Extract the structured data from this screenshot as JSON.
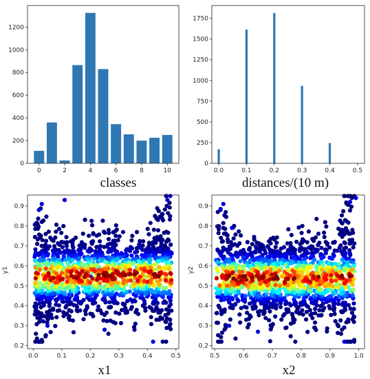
{
  "chart_data": [
    {
      "type": "bar",
      "id": "classes",
      "x": [
        0,
        1,
        2,
        3,
        4,
        5,
        6,
        7,
        8,
        9,
        10
      ],
      "values": [
        110,
        360,
        25,
        865,
        1325,
        830,
        345,
        255,
        200,
        225,
        250
      ],
      "xlabel": "classes",
      "xticks": [
        0,
        2,
        4,
        6,
        8,
        10
      ],
      "yticks": [
        0,
        200,
        400,
        600,
        800,
        1000,
        1200
      ],
      "xlim": [
        -0.9,
        10.9
      ],
      "ylim": [
        0,
        1390
      ],
      "color": "#2f78b4"
    },
    {
      "type": "bar",
      "id": "distances",
      "x": [
        0.0,
        0.1,
        0.2,
        0.3,
        0.4
      ],
      "values": [
        170,
        1615,
        1815,
        935,
        245
      ],
      "xlabel": "distances/(10 m)",
      "xticks": [
        "0.0",
        "0.1",
        "0.2",
        "0.3",
        "0.4",
        "0.5"
      ],
      "yticks": [
        0,
        250,
        500,
        750,
        1000,
        1250,
        1500,
        1750
      ],
      "xlim": [
        -0.025,
        0.525
      ],
      "ylim": [
        0,
        1905
      ],
      "color": "#2f78b4"
    },
    {
      "type": "scatter",
      "id": "x1y1",
      "xlabel": "x1",
      "ylabel": "y1",
      "xlim": [
        -0.02,
        0.51
      ],
      "ylim": [
        0.185,
        0.955
      ],
      "xticks": [
        "0.0",
        "0.1",
        "0.2",
        "0.3",
        "0.4",
        "0.5"
      ],
      "yticks": [
        "0.2",
        "0.3",
        "0.4",
        "0.5",
        "0.6",
        "0.7",
        "0.8",
        "0.9"
      ],
      "colormap": "jet",
      "point_count": 1500,
      "band_center_y": 0.55,
      "sample_points": [
        {
          "x": 0.03,
          "y": 0.91
        },
        {
          "x": 0.02,
          "y": 0.88
        },
        {
          "x": 0.48,
          "y": 0.95
        },
        {
          "x": 0.47,
          "y": 0.93
        },
        {
          "x": 0.42,
          "y": 0.22
        },
        {
          "x": 0.25,
          "y": 0.28
        },
        {
          "x": 0.11,
          "y": 0.93
        },
        {
          "x": 0.05,
          "y": 0.3
        },
        {
          "x": 0.2,
          "y": 0.55
        }
      ]
    },
    {
      "type": "scatter",
      "id": "x2y2",
      "xlabel": "x2",
      "ylabel": "y2",
      "xlim": [
        0.49,
        1.02
      ],
      "ylim": [
        0.185,
        0.955
      ],
      "xticks": [
        "0.5",
        "0.6",
        "0.7",
        "0.8",
        "0.9",
        "1.0"
      ],
      "yticks": [
        "0.2",
        "0.3",
        "0.4",
        "0.5",
        "0.6",
        "0.7",
        "0.8",
        "0.9"
      ],
      "colormap": "jet",
      "point_count": 1500,
      "band_center_y": 0.54,
      "sample_points": [
        {
          "x": 0.53,
          "y": 0.91
        },
        {
          "x": 0.52,
          "y": 0.88
        },
        {
          "x": 0.99,
          "y": 0.94
        },
        {
          "x": 0.97,
          "y": 0.92
        },
        {
          "x": 0.95,
          "y": 0.22
        },
        {
          "x": 0.65,
          "y": 0.27
        },
        {
          "x": 0.56,
          "y": 0.79
        },
        {
          "x": 0.55,
          "y": 0.3
        },
        {
          "x": 0.7,
          "y": 0.55
        }
      ]
    }
  ]
}
